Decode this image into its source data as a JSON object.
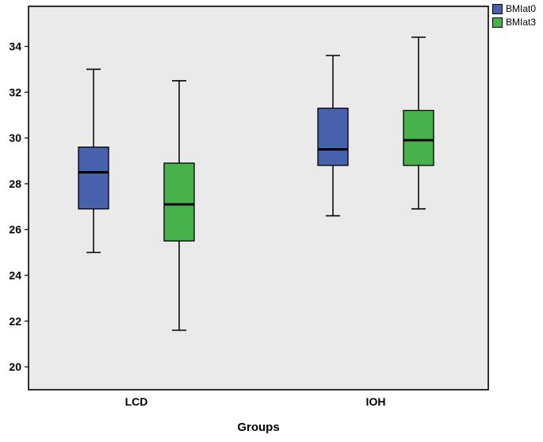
{
  "chart_data": {
    "type": "boxplot",
    "title": "",
    "xlabel": "Groups",
    "ylabel": "",
    "ylim": [
      19.0,
      35.75
    ],
    "yticks": [
      20,
      22,
      24,
      26,
      28,
      30,
      32,
      34
    ],
    "grid": false,
    "legend_position": "top-right",
    "plot_bg": "#eaeaea",
    "categories": [
      "LCD",
      "IOH"
    ],
    "series": [
      {
        "name": "BMIat0",
        "color": "#4861ac"
      },
      {
        "name": "BMIat3",
        "color": "#47b24c"
      }
    ],
    "groups": [
      {
        "category": "LCD",
        "boxes": [
          {
            "series": "BMIat0",
            "low": 25.0,
            "q1": 26.9,
            "median": 28.5,
            "q3": 29.6,
            "high": 33.0
          },
          {
            "series": "BMIat3",
            "low": 21.6,
            "q1": 25.5,
            "median": 27.1,
            "q3": 28.9,
            "high": 32.5
          }
        ]
      },
      {
        "category": "IOH",
        "boxes": [
          {
            "series": "BMIat0",
            "low": 26.6,
            "q1": 28.8,
            "median": 29.5,
            "q3": 31.3,
            "high": 33.6
          },
          {
            "series": "BMIat3",
            "low": 26.9,
            "q1": 28.8,
            "median": 29.9,
            "q3": 31.2,
            "high": 34.4
          }
        ]
      }
    ]
  }
}
